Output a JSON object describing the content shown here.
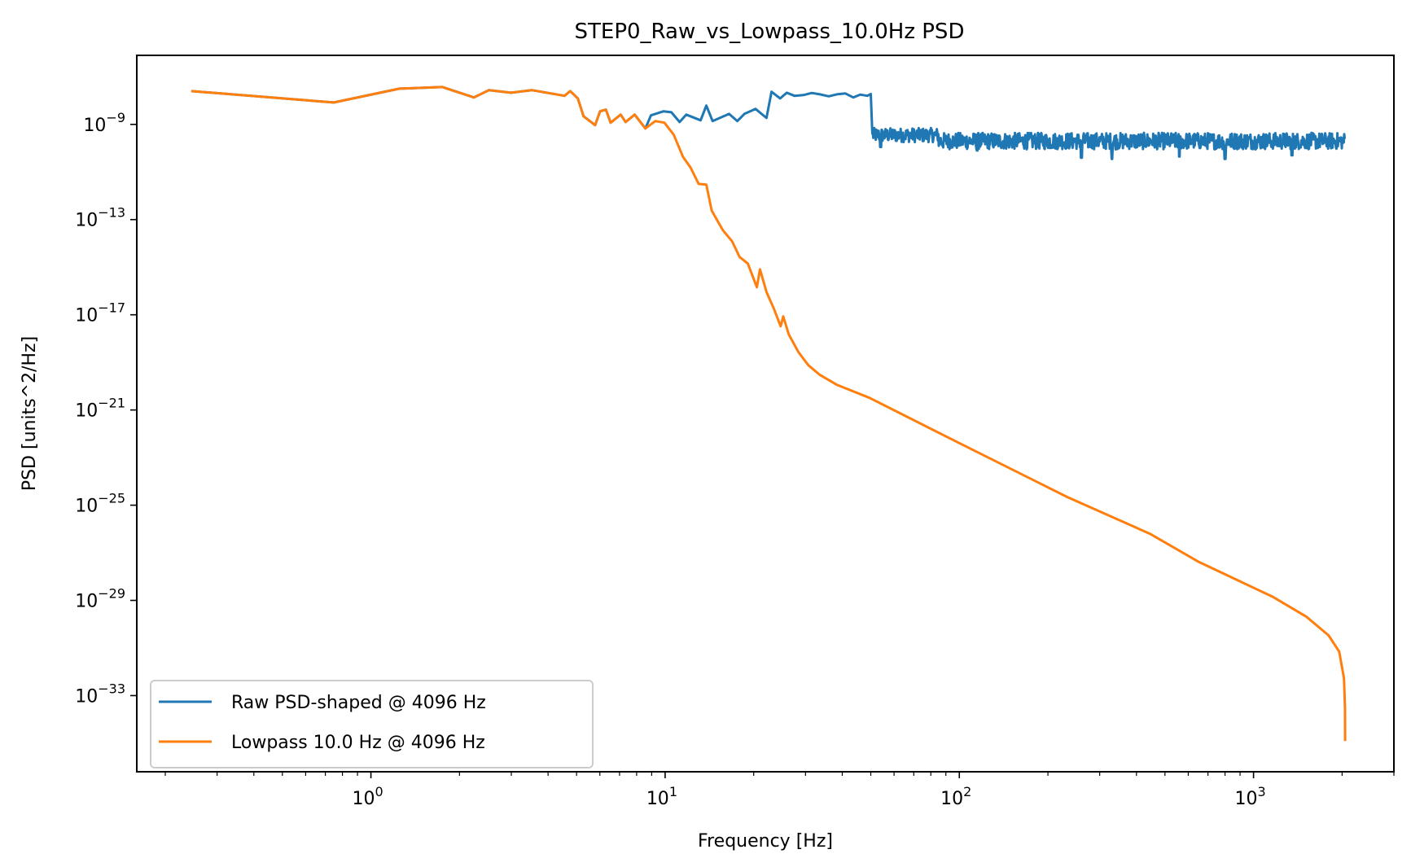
{
  "chart_data": {
    "type": "line",
    "title": "STEP0_Raw_vs_Lowpass_10.0Hz PSD",
    "xlabel": "Frequency [Hz]",
    "ylabel": "PSD [units^2/Hz]",
    "xscale": "log",
    "yscale": "log",
    "xlim": [
      0.16,
      3000
    ],
    "ylim_log10": [
      -36.2,
      -6.1
    ],
    "grid": false,
    "legend_position": "lower-left",
    "x_ticks": [
      {
        "value": 1,
        "base": "10",
        "exp": "0"
      },
      {
        "value": 10,
        "base": "10",
        "exp": "1"
      },
      {
        "value": 100,
        "base": "10",
        "exp": "2"
      },
      {
        "value": 1000,
        "base": "10",
        "exp": "3"
      }
    ],
    "y_ticks": [
      {
        "log10": -9,
        "base": "10",
        "exp": "−9"
      },
      {
        "log10": -13,
        "base": "10",
        "exp": "−13"
      },
      {
        "log10": -17,
        "base": "10",
        "exp": "−17"
      },
      {
        "log10": -21,
        "base": "10",
        "exp": "−21"
      },
      {
        "log10": -25,
        "base": "10",
        "exp": "−25"
      },
      {
        "log10": -29,
        "base": "10",
        "exp": "−29"
      },
      {
        "log10": -33,
        "base": "10",
        "exp": "−33"
      }
    ],
    "series": [
      {
        "name": "Raw PSD-shaped @ 4096 Hz",
        "color": "#1f77b4",
        "note": "points are [frequency_Hz, log10(PSD)]; above 50 Hz the trace is a dense noisy band",
        "points": [
          [
            0.245,
            -7.6
          ],
          [
            0.748,
            -8.08
          ],
          [
            1.25,
            -7.5
          ],
          [
            1.75,
            -7.43
          ],
          [
            2.24,
            -7.87
          ],
          [
            2.52,
            -7.56
          ],
          [
            2.99,
            -7.67
          ],
          [
            3.52,
            -7.56
          ],
          [
            4.55,
            -7.8
          ],
          [
            4.76,
            -7.6
          ],
          [
            5.05,
            -7.91
          ],
          [
            5.28,
            -8.66
          ],
          [
            5.78,
            -9.03
          ],
          [
            6.01,
            -8.45
          ],
          [
            6.29,
            -8.38
          ],
          [
            6.53,
            -8.93
          ],
          [
            7.06,
            -8.59
          ],
          [
            7.34,
            -8.9
          ],
          [
            7.88,
            -8.59
          ],
          [
            8.57,
            -9.17
          ],
          [
            8.95,
            -8.62
          ],
          [
            9.88,
            -8.45
          ],
          [
            10.5,
            -8.49
          ],
          [
            11.2,
            -8.9
          ],
          [
            11.8,
            -8.59
          ],
          [
            13.2,
            -8.83
          ],
          [
            13.8,
            -8.21
          ],
          [
            14.5,
            -8.86
          ],
          [
            16.5,
            -8.56
          ],
          [
            17.6,
            -8.86
          ],
          [
            18.6,
            -8.56
          ],
          [
            20.3,
            -8.35
          ],
          [
            22.1,
            -8.73
          ],
          [
            23.0,
            -7.63
          ],
          [
            24.6,
            -7.91
          ],
          [
            25.9,
            -7.67
          ],
          [
            27.5,
            -7.8
          ],
          [
            29.5,
            -7.77
          ],
          [
            31.5,
            -7.68
          ],
          [
            33.6,
            -7.74
          ],
          [
            36.0,
            -7.82
          ],
          [
            38.3,
            -7.74
          ],
          [
            41.0,
            -7.7
          ],
          [
            43.6,
            -7.87
          ],
          [
            46.0,
            -7.75
          ],
          [
            48.7,
            -7.8
          ],
          [
            50.0,
            -7.72
          ],
          [
            50.6,
            -9.38
          ]
        ],
        "noise_band": {
          "segments": [
            {
              "f_start": 50.6,
              "f_end": 85,
              "log10_min": -9.75,
              "log10_max": -9.15
            },
            {
              "f_start": 85,
              "f_end": 2048,
              "log10_min": -10.05,
              "log10_max": -9.35
            }
          ],
          "spikes_down": [
            [
              54,
              -9.95
            ],
            [
              115,
              -10.1
            ],
            [
              260,
              -10.4
            ],
            [
              330,
              -10.45
            ],
            [
              560,
              -10.35
            ],
            [
              800,
              -10.45
            ],
            [
              1350,
              -10.3
            ]
          ]
        }
      },
      {
        "name": "Lowpass 10.0 Hz @ 4096 Hz",
        "color": "#ff7f0e",
        "note": "points are [frequency_Hz, log10(PSD)]",
        "points": [
          [
            0.245,
            -7.6
          ],
          [
            0.748,
            -8.08
          ],
          [
            1.25,
            -7.5
          ],
          [
            1.75,
            -7.43
          ],
          [
            2.24,
            -7.87
          ],
          [
            2.52,
            -7.56
          ],
          [
            2.99,
            -7.67
          ],
          [
            3.52,
            -7.56
          ],
          [
            4.55,
            -7.8
          ],
          [
            4.76,
            -7.6
          ],
          [
            5.05,
            -7.91
          ],
          [
            5.28,
            -8.66
          ],
          [
            5.78,
            -9.03
          ],
          [
            6.01,
            -8.45
          ],
          [
            6.29,
            -8.38
          ],
          [
            6.53,
            -8.93
          ],
          [
            7.06,
            -8.59
          ],
          [
            7.34,
            -8.9
          ],
          [
            7.88,
            -8.59
          ],
          [
            8.57,
            -9.17
          ],
          [
            9.26,
            -8.86
          ],
          [
            9.94,
            -8.93
          ],
          [
            10.7,
            -9.44
          ],
          [
            11.5,
            -10.37
          ],
          [
            12.2,
            -10.81
          ],
          [
            13.0,
            -11.5
          ],
          [
            13.8,
            -11.53
          ],
          [
            14.4,
            -12.62
          ],
          [
            15.7,
            -13.44
          ],
          [
            16.9,
            -13.92
          ],
          [
            17.9,
            -14.57
          ],
          [
            19.1,
            -14.85
          ],
          [
            20.5,
            -15.84
          ],
          [
            21.0,
            -15.09
          ],
          [
            22.1,
            -16.04
          ],
          [
            23.4,
            -16.73
          ],
          [
            24.7,
            -17.48
          ],
          [
            25.2,
            -17.07
          ],
          [
            26.3,
            -17.82
          ],
          [
            28.4,
            -18.57
          ],
          [
            30.7,
            -19.12
          ],
          [
            33.6,
            -19.53
          ],
          [
            38.3,
            -19.94
          ],
          [
            49.5,
            -20.49
          ],
          [
            100,
            -22.39
          ],
          [
            233,
            -24.66
          ],
          [
            444,
            -26.2
          ],
          [
            653,
            -27.39
          ],
          [
            1167,
            -28.86
          ],
          [
            1510,
            -29.68
          ],
          [
            1799,
            -30.47
          ],
          [
            1955,
            -31.15
          ],
          [
            2030,
            -32.28
          ],
          [
            2046,
            -33.5
          ],
          [
            2048,
            -34.91
          ]
        ]
      }
    ]
  }
}
